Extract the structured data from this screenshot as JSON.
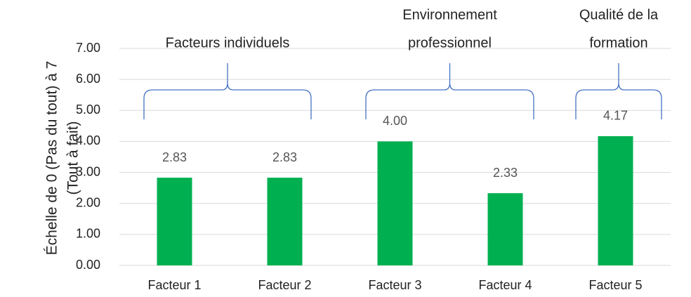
{
  "chart_data": {
    "type": "bar",
    "categories": [
      "Facteur 1",
      "Facteur 2",
      "Facteur 3",
      "Facteur 4",
      "Facteur 5"
    ],
    "values": [
      2.83,
      2.83,
      4.0,
      2.33,
      4.17
    ],
    "value_labels": [
      "2.83",
      "2.83",
      "4.00",
      "2.33",
      "4.17"
    ],
    "color": "#00b050",
    "ylim": [
      0,
      7
    ],
    "yticks": [
      {
        "value": 0,
        "label": "0.00"
      },
      {
        "value": 1,
        "label": "1.00"
      },
      {
        "value": 2,
        "label": "2.00"
      },
      {
        "value": 3,
        "label": "3.00"
      },
      {
        "value": 4,
        "label": "4.00"
      },
      {
        "value": 5,
        "label": "5.00"
      },
      {
        "value": 6,
        "label": "6.00"
      },
      {
        "value": 7,
        "label": "7.00"
      }
    ],
    "grid": true,
    "y_label": [
      "Échelle de 0 (Pas du tout) à 7",
      "(Tout à fait)"
    ],
    "annotations": [
      {
        "lines": [
          "Facteurs individuels"
        ]
      },
      {
        "lines": [
          "Environnement",
          "professionnel"
        ]
      },
      {
        "lines": [
          "Qualité de la",
          "formation"
        ]
      }
    ]
  }
}
